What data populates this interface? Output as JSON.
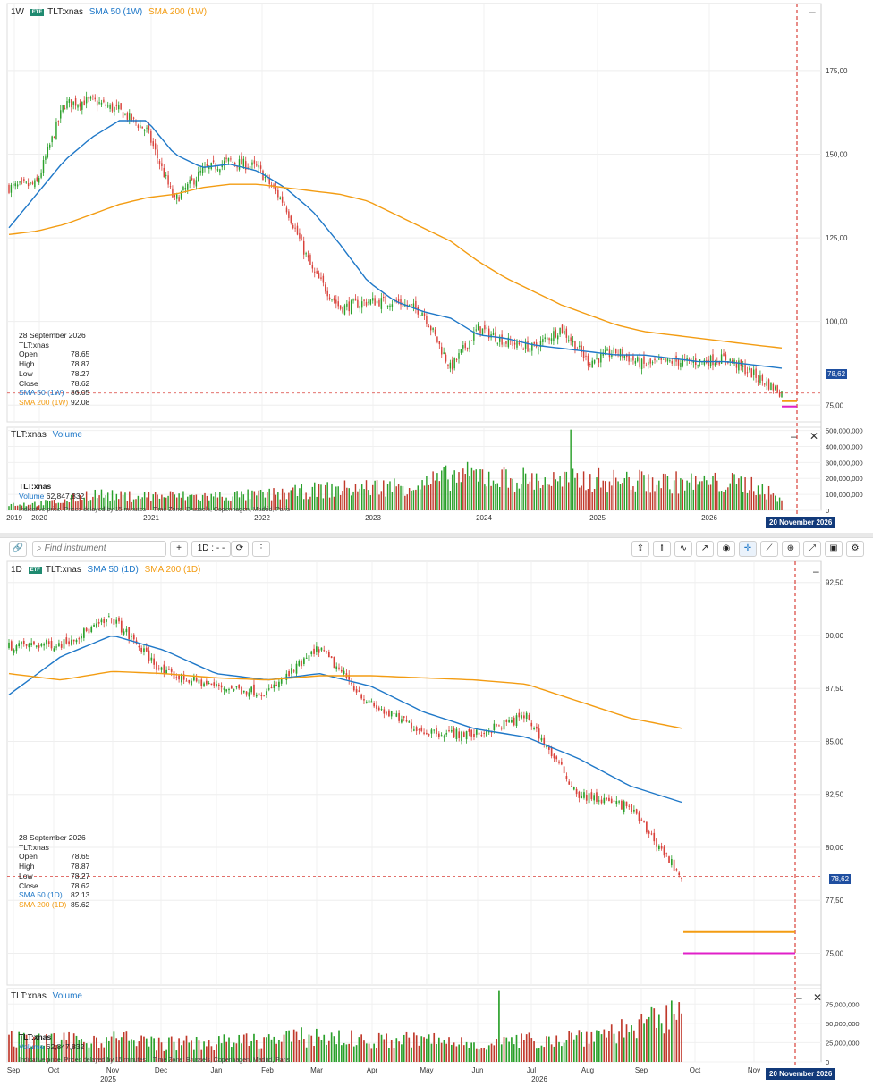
{
  "weekly": {
    "interval": "1W",
    "instrument": "TLT:xnas",
    "etf_badge": "ETF",
    "sma50_label": "SMA 50 (1W)",
    "sma200_label": "SMA 200 (1W)",
    "y_ticks": [
      "175,00",
      "150,00",
      "125,00",
      "100,00",
      "75,00"
    ],
    "last_price_tag": "78,62",
    "ohlc": {
      "date": "28 September 2026",
      "instrument": "TLT:xnas",
      "open_label": "Open",
      "open": "78.65",
      "high_label": "High",
      "high": "78.87",
      "low_label": "Low",
      "low": "78.27",
      "close_label": "Close",
      "close": "78.62",
      "sma50_label": "SMA 50 (1W)",
      "sma50": "86.05",
      "sma200_label": "SMA 200 (1W)",
      "sma200": "92.08"
    },
    "volume": {
      "instrument": "TLT:xnas",
      "label": "Volume",
      "legend_instrument": "TLT:xnas",
      "legend_label": "Volume",
      "legend_value": "62,847,832",
      "y_ticks": [
        "500,000,000",
        "400,000,000",
        "300,000,000",
        "200,000,000",
        "100,000,000",
        "0"
      ],
      "note_price": "Indicative price. Prices delayed by 15 minutes",
      "note_tz": "Time Zone: Brussels, Copenhagen, Madrid, Paris"
    },
    "x_labels": [
      "2019",
      "2020",
      "2021",
      "2022",
      "2023",
      "2024",
      "2025",
      "2026"
    ],
    "date_tag": "20 November 2026"
  },
  "toolbar": {
    "search_placeholder": "Find instrument",
    "add_label": "+",
    "interval_label": "1D : - -",
    "refresh_label": "⟳",
    "more_label": "⋮"
  },
  "daily": {
    "interval": "1D",
    "instrument": "TLT:xnas",
    "etf_badge": "ETF",
    "sma50_label": "SMA 50 (1D)",
    "sma200_label": "SMA 200 (1D)",
    "y_ticks": [
      "92,50",
      "90,00",
      "87,50",
      "85,00",
      "82,50",
      "80,00",
      "77,50",
      "75,00"
    ],
    "last_price_tag": "78,62",
    "ohlc": {
      "date": "28 September 2026",
      "instrument": "TLT:xnas",
      "open_label": "Open",
      "open": "78.65",
      "high_label": "High",
      "high": "78.87",
      "low_label": "Low",
      "low": "78.27",
      "close_label": "Close",
      "close": "78.62",
      "sma50_label": "SMA 50 (1D)",
      "sma50": "82.13",
      "sma200_label": "SMA 200 (1D)",
      "sma200": "85.62"
    },
    "volume": {
      "instrument": "TLT:xnas",
      "label": "Volume",
      "legend_instrument": "TLT:xnas",
      "legend_label": "Volume",
      "legend_value": "62,847,832",
      "y_ticks": [
        "75,000,000",
        "50,000,000",
        "25,000,000",
        "0"
      ],
      "note_price": "Indicative price. Prices delayed by 15 minutes",
      "note_tz": "Time Zone: Brussels, Copenhagen, Madrid, Paris"
    },
    "x_labels": [
      "Sep",
      "Oct",
      "Nov",
      "Dec",
      "Jan",
      "Feb",
      "Mar",
      "Apr",
      "May",
      "Jun",
      "Jul",
      "Aug",
      "Sep",
      "Oct",
      "Nov"
    ],
    "x_years": [
      "2025",
      "2026"
    ],
    "date_tag": "20 November 2026"
  },
  "chart_data": [
    {
      "type": "line",
      "title": "",
      "interval": "1W",
      "x": [
        "2019-09",
        "2019-12",
        "2020-03",
        "2020-06",
        "2020-09",
        "2020-12",
        "2021-03",
        "2021-06",
        "2021-09",
        "2021-12",
        "2022-03",
        "2022-06",
        "2022-09",
        "2022-12",
        "2023-03",
        "2023-06",
        "2023-09",
        "2023-12",
        "2024-03",
        "2024-06",
        "2024-09",
        "2024-12",
        "2025-03",
        "2025-06",
        "2025-09",
        "2025-12",
        "2026-03",
        "2026-06",
        "2026-09"
      ],
      "series": [
        {
          "name": "TLT:xnas",
          "values": [
            140,
            141,
            165,
            166,
            163,
            157,
            136,
            145,
            148,
            146,
            135,
            115,
            104,
            106,
            106,
            103,
            86,
            98,
            94,
            92,
            98,
            88,
            91,
            87,
            88,
            88,
            89,
            84,
            78.62
          ]
        },
        {
          "name": "SMA 50 (1W)",
          "values": [
            128,
            138,
            148,
            155,
            160,
            160,
            150,
            146,
            147,
            145,
            140,
            133,
            123,
            112,
            106,
            103,
            101,
            96,
            95,
            93,
            92,
            91,
            90,
            90,
            89,
            88,
            88,
            87,
            86.05
          ]
        },
        {
          "name": "SMA 200 (1W)",
          "values": [
            126,
            127,
            129,
            132,
            135,
            137,
            138,
            140,
            141,
            141,
            140,
            139,
            138,
            136,
            132,
            128,
            124,
            118,
            113,
            109,
            105,
            102,
            99,
            97,
            96,
            95,
            94,
            93,
            92.08
          ]
        }
      ],
      "volume": [
        40,
        45,
        60,
        110,
        90,
        95,
        95,
        90,
        95,
        100,
        110,
        130,
        140,
        150,
        160,
        170,
        220,
        230,
        210,
        200,
        190,
        200,
        195,
        190,
        185,
        180,
        180,
        170,
        62.8
      ],
      "volume_units": "millions",
      "ylim": [
        70,
        195
      ],
      "volume_ylim": [
        0,
        520
      ],
      "last_close": 78.62,
      "legend": "top-left"
    },
    {
      "type": "line",
      "title": "",
      "interval": "1D",
      "x": [
        "2025-09-01",
        "2025-10-01",
        "2025-11-01",
        "2025-12-01",
        "2026-01-01",
        "2026-02-01",
        "2026-03-01",
        "2026-04-01",
        "2026-05-01",
        "2026-06-01",
        "2026-07-01",
        "2026-08-01",
        "2026-09-01",
        "2026-09-28"
      ],
      "series": [
        {
          "name": "TLT:xnas",
          "values": [
            89.5,
            89.6,
            90.8,
            88.2,
            87.6,
            87.3,
            89.4,
            86.7,
            85.5,
            85.3,
            86.2,
            82.5,
            81.9,
            78.62
          ]
        },
        {
          "name": "SMA 50 (1D)",
          "values": [
            87.2,
            89.0,
            90.0,
            89.3,
            88.2,
            87.9,
            88.2,
            87.6,
            86.4,
            85.6,
            85.2,
            84.2,
            82.9,
            82.13
          ]
        },
        {
          "name": "SMA 200 (1D)",
          "values": [
            88.2,
            87.9,
            88.3,
            88.2,
            88.0,
            87.9,
            88.1,
            88.1,
            88.0,
            87.9,
            87.7,
            86.9,
            86.1,
            85.62
          ]
        }
      ],
      "volume": [
        30,
        28,
        32,
        25,
        26,
        30,
        35,
        28,
        30,
        25,
        28,
        35,
        45,
        62.8
      ],
      "volume_units": "millions",
      "ylim": [
        73.5,
        93.5
      ],
      "volume_ylim": [
        0,
        95
      ],
      "last_close": 78.62,
      "legend": "top-left"
    }
  ]
}
